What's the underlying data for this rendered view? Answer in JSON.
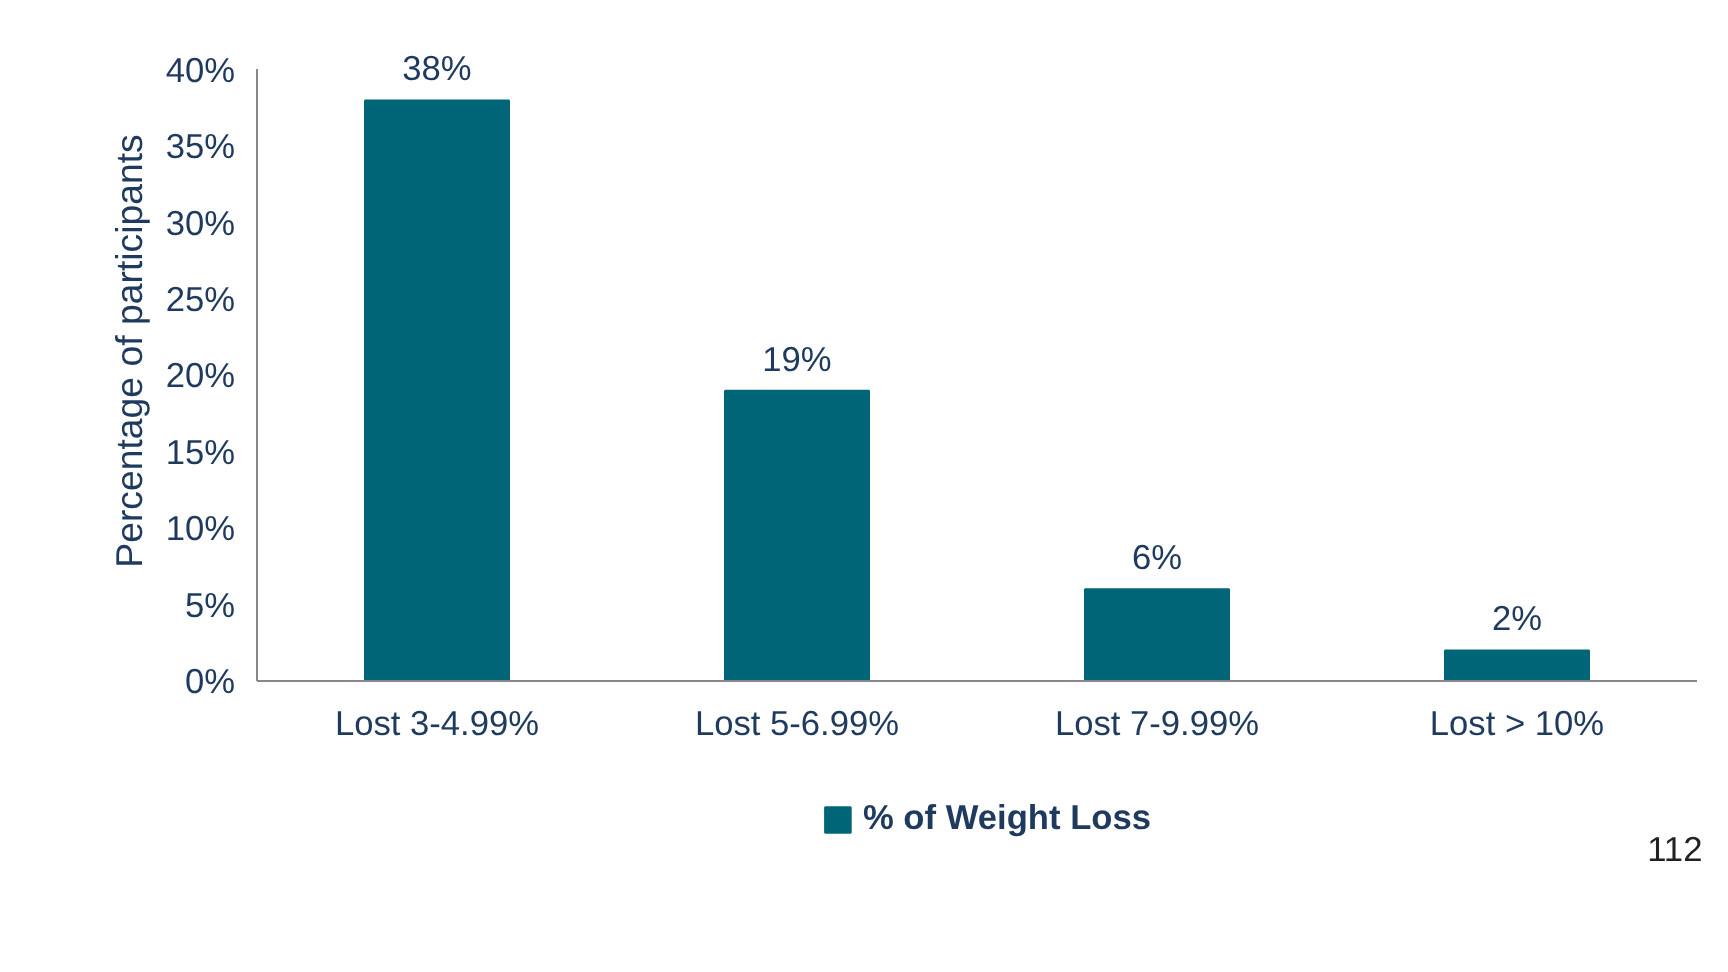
{
  "chart_data": {
    "type": "bar",
    "categories": [
      "Lost 3-4.99%",
      "Lost 5-6.99%",
      "Lost 7-9.99%",
      "Lost > 10%"
    ],
    "series": [
      {
        "name": "% of Weight Loss",
        "color": "#006677",
        "values": [
          38,
          19,
          6,
          2
        ],
        "value_labels": [
          "38%",
          "19%",
          "6%",
          "2%"
        ]
      }
    ],
    "ylabel": "Percentage of participants",
    "ylim": [
      0,
      40
    ],
    "yticks": [
      {
        "value": 0,
        "label": "0%"
      },
      {
        "value": 5,
        "label": "5%"
      },
      {
        "value": 10,
        "label": "10%"
      },
      {
        "value": 15,
        "label": "15%"
      },
      {
        "value": 20,
        "label": "20%"
      },
      {
        "value": 25,
        "label": "25%"
      },
      {
        "value": 30,
        "label": "30%"
      },
      {
        "value": 35,
        "label": "35%"
      },
      {
        "value": 40,
        "label": "40%"
      }
    ],
    "legend": "bottom",
    "grid": false,
    "annotations": [
      "112"
    ]
  }
}
